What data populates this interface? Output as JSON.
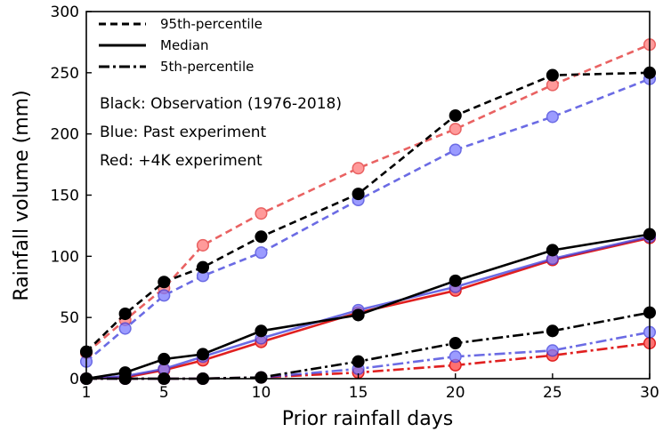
{
  "chart_data": {
    "type": "line",
    "xlabel": "Prior rainfall days",
    "ylabel": "Rainfall volume (mm)",
    "xlim": [
      1,
      30
    ],
    "ylim": [
      0,
      300
    ],
    "xticks": [
      1,
      5,
      10,
      15,
      20,
      25,
      30
    ],
    "yticks": [
      0,
      50,
      100,
      150,
      200,
      250,
      300
    ],
    "grid": false,
    "legend_placement": "top-left",
    "legend": [
      {
        "label": "95th-percentile",
        "style": "dashed"
      },
      {
        "label": "Median",
        "style": "solid"
      },
      {
        "label": "5th-percentile",
        "style": "dashdot"
      }
    ],
    "annotations": [
      "Black: Observation (1976-2018)",
      "Blue: Past experiment",
      "Red: +4K experiment"
    ],
    "x": [
      1,
      3,
      5,
      7,
      10,
      15,
      20,
      25,
      30
    ],
    "series": [
      {
        "group": "Observation",
        "stat": "95th-percentile",
        "style": "dashed",
        "color": "#000000",
        "marker_fill": "#000000",
        "opacity": 1,
        "values": [
          22,
          53,
          79,
          91,
          116,
          151,
          215,
          248,
          250
        ]
      },
      {
        "group": "Observation",
        "stat": "Median",
        "style": "solid",
        "color": "#000000",
        "marker_fill": "#000000",
        "opacity": 1,
        "values": [
          0,
          5,
          16,
          20,
          39,
          52,
          80,
          105,
          118
        ]
      },
      {
        "group": "Observation",
        "stat": "5th-percentile",
        "style": "dashdot",
        "color": "#000000",
        "marker_fill": "#000000",
        "opacity": 1,
        "values": [
          0,
          0,
          0,
          0,
          1,
          14,
          29,
          39,
          54
        ]
      },
      {
        "group": "Past experiment",
        "stat": "95th-percentile",
        "style": "dashed",
        "color": "#3a3adb",
        "marker_fill": "#7a7aff",
        "opacity": 0.75,
        "values": [
          14,
          41,
          68,
          84,
          103,
          146,
          187,
          214,
          245
        ]
      },
      {
        "group": "Past experiment",
        "stat": "Median",
        "style": "solid",
        "color": "#3a3adb",
        "marker_fill": "#7a7aff",
        "opacity": 0.75,
        "values": [
          0,
          2,
          8,
          18,
          33,
          56,
          75,
          98,
          116
        ]
      },
      {
        "group": "Past experiment",
        "stat": "5th-percentile",
        "style": "dashdot",
        "color": "#3a3adb",
        "marker_fill": "#7a7aff",
        "opacity": 0.75,
        "values": [
          0,
          0,
          0,
          0,
          1,
          8,
          18,
          23,
          38
        ]
      },
      {
        "group": "+4K experiment",
        "stat": "95th-percentile",
        "style": "dashed",
        "color": "#e02020",
        "marker_fill": "#ff7070",
        "opacity": 0.7,
        "values": [
          21,
          48,
          74,
          109,
          135,
          172,
          204,
          240,
          273
        ]
      },
      {
        "group": "+4K experiment",
        "stat": "Median",
        "style": "solid",
        "color": "#e02020",
        "marker_fill": "#ff7070",
        "opacity": 1,
        "values": [
          0,
          1,
          7,
          15,
          30,
          54,
          72,
          97,
          115
        ]
      },
      {
        "group": "+4K experiment",
        "stat": "5th-percentile",
        "style": "dashdot",
        "color": "#e02020",
        "marker_fill": "#ff7070",
        "opacity": 1,
        "values": [
          0,
          0,
          0,
          0,
          1,
          5,
          11,
          19,
          29
        ]
      }
    ]
  }
}
